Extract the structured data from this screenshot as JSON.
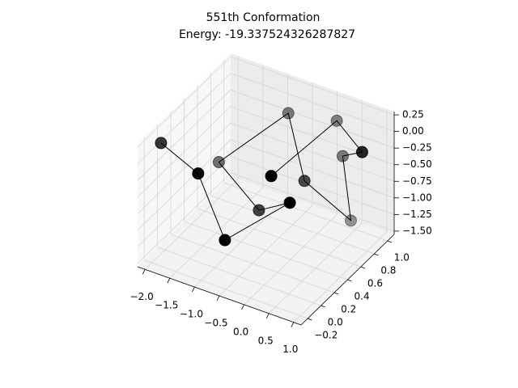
{
  "chart_data": {
    "type": "line3d",
    "title": "551th Conformation",
    "subtitle": "Energy: -19.337524326287827",
    "color": "#000000",
    "x": [
      -2.08,
      -1.33,
      -0.79,
      0.52,
      -0.64,
      -1.45,
      -0.45,
      0.01,
      0.41,
      0.38,
      1.04,
      0.26,
      0.01
    ],
    "y": [
      0,
      0,
      0,
      0,
      0.4,
      0.4,
      0.7,
      0.6,
      1.0,
      0.9,
      0.7,
      0.9,
      0.1
    ],
    "z": [
      0.04,
      -0.22,
      -1.08,
      -0.17,
      -0.98,
      -0.47,
      0.24,
      -0.56,
      -1.44,
      -0.38,
      0.05,
      0.12,
      0.0
    ],
    "xlim": [
      -2.15,
      1.15
    ],
    "ylim": [
      -0.3,
      1.1
    ],
    "zlim": [
      -1.55,
      0.3
    ],
    "xticks": [
      {
        "value": -2,
        "label": "−2.0"
      },
      {
        "value": -1.5,
        "label": "−1.5"
      },
      {
        "value": -1,
        "label": "−1.0"
      },
      {
        "value": -0.5,
        "label": "−0.5"
      },
      {
        "value": 0,
        "label": "0.0"
      },
      {
        "value": 0.5,
        "label": "0.5"
      },
      {
        "value": 1,
        "label": "1.0"
      }
    ],
    "yticks": [
      {
        "value": -0.2,
        "label": "−0.2"
      },
      {
        "value": 0,
        "label": "0.0"
      },
      {
        "value": 0.2,
        "label": "0.2"
      },
      {
        "value": 0.4,
        "label": "0.4"
      },
      {
        "value": 0.6,
        "label": "0.6"
      },
      {
        "value": 0.8,
        "label": "0.8"
      },
      {
        "value": 1,
        "label": "1.0"
      }
    ],
    "zticks": [
      0.25,
      {
        "value": 0,
        "label": "0.00"
      },
      {
        "value": -0.25,
        "label": "−0.25"
      },
      {
        "value": -0.5,
        "label": "−0.50"
      },
      {
        "value": -0.75,
        "label": "−0.75"
      },
      {
        "value": -1,
        "label": "−1.00"
      },
      {
        "value": -1.25,
        "label": "−1.25"
      },
      {
        "value": -1.5,
        "label": "−1.50"
      }
    ],
    "grid": true
  }
}
